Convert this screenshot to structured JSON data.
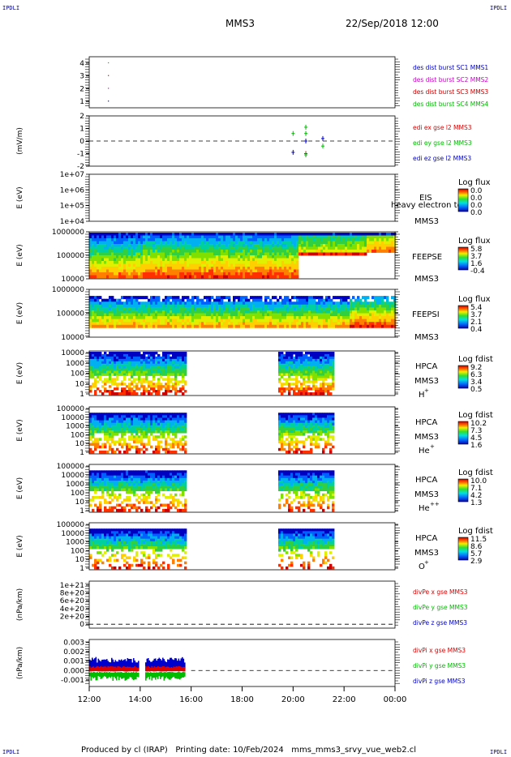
{
  "header": {
    "title": "MMS3",
    "date": "22/Sep/2018 12:00",
    "corner_tl": "IPDLI",
    "corner_tr": "IPDLI",
    "corner_bl": "IPDLI",
    "corner_br": "IPDLI"
  },
  "footer": "Produced by cl (IRAP)   Printing date: 10/Feb/2024   mms_mms3_srvy_vue_web2.cl",
  "colors": {
    "sc1": "#0000cc",
    "sc2": "#cc00cc",
    "sc3": "#cc0000",
    "sc4": "#00bb00",
    "x_comp": "#dd0000",
    "y_comp": "#00bb00",
    "z_comp": "#0000cc"
  },
  "chart_data": [
    {
      "type": "scatter",
      "panel": "burst",
      "ylabel": "",
      "ylim": [
        0.5,
        4.5
      ],
      "yticks": [
        "1",
        "2",
        "3",
        "4"
      ],
      "legend": [
        "des dist burst SC1 MMS1",
        "des dist burst SC2 MMS2",
        "des dist burst SC3 MMS3",
        "des dist burst SC4 MMS4"
      ],
      "points": [
        {
          "x": "12:45",
          "y": 1,
          "series": "SC1"
        },
        {
          "x": "12:45",
          "y": 2,
          "series": "SC2"
        },
        {
          "x": "12:45",
          "y": 3,
          "series": "SC3"
        },
        {
          "x": "12:45",
          "y": 4,
          "series": "SC4"
        }
      ]
    },
    {
      "type": "scatter",
      "panel": "edi",
      "ylabel": "(mV/m)",
      "ylim": [
        -2,
        2
      ],
      "yticks": [
        "-2",
        "-1",
        "0",
        "1",
        "2"
      ],
      "legend": [
        "edi ex gse l2 MMS3",
        "edi ey gse l2 MMS3",
        "edi ez gse l2 MMS3"
      ],
      "points": [
        {
          "x": "20:00",
          "y": 0.6,
          "series": "ey"
        },
        {
          "x": "20:00",
          "y": -0.9,
          "series": "ez"
        },
        {
          "x": "20:30",
          "y": 1.1,
          "series": "ey"
        },
        {
          "x": "20:30",
          "y": 0.6,
          "series": "ey"
        },
        {
          "x": "20:30",
          "y": 0.0,
          "series": "ez"
        },
        {
          "x": "20:30",
          "y": -1.0,
          "series": "ex"
        },
        {
          "x": "20:30",
          "y": -1.1,
          "series": "ey"
        },
        {
          "x": "21:10",
          "y": 0.2,
          "series": "ez"
        },
        {
          "x": "21:10",
          "y": -0.4,
          "series": "ey"
        }
      ]
    },
    {
      "type": "heatmap",
      "panel": "eis",
      "ylabel": "E (eV)",
      "yticks": [
        "1e+04",
        "1e+05",
        "1e+06",
        "1e+07"
      ],
      "label": "EIS",
      "label2": "MMS3",
      "overlay": "heavy electron to",
      "cbar_title": "Log flux",
      "cbar_ticks": [
        "0.0",
        "0.0",
        "0.0",
        "0.0"
      ]
    },
    {
      "type": "heatmap",
      "panel": "feepse",
      "ylabel": "E (eV)",
      "yticks": [
        "10000",
        "100000",
        "1000000"
      ],
      "label": "FEEPSE",
      "label2": "MMS3",
      "cbar_title": "Log flux",
      "cbar_ticks": [
        "5.8",
        "3.7",
        "1.6",
        "-0.4"
      ]
    },
    {
      "type": "heatmap",
      "panel": "feepsi",
      "ylabel": "E (eV)",
      "yticks": [
        "10000",
        "100000",
        "1000000"
      ],
      "label": "FEEPSI",
      "label2": "MMS3",
      "cbar_title": "Log flux",
      "cbar_ticks": [
        "5.4",
        "3.7",
        "2.1",
        "0.4"
      ]
    },
    {
      "type": "heatmap",
      "panel": "hpca-h",
      "ylabel": "E (eV)",
      "yticks": [
        "1",
        "10",
        "100",
        "1000",
        "10000"
      ],
      "label": "HPCA",
      "label2": "MMS3",
      "species": "H",
      "species_sup": "+",
      "cbar_title": "Log fdist",
      "cbar_ticks": [
        "9.2",
        "6.3",
        "3.4",
        "0.5"
      ],
      "coverage": [
        [
          "12:00",
          "15:45"
        ],
        [
          "19:25",
          "21:35"
        ]
      ]
    },
    {
      "type": "heatmap",
      "panel": "hpca-he1",
      "ylabel": "E (eV)",
      "yticks": [
        "1",
        "10",
        "100",
        "1000",
        "10000",
        "100000"
      ],
      "label": "HPCA",
      "label2": "MMS3",
      "species": "He",
      "species_sup": "+",
      "cbar_title": "Log fdist",
      "cbar_ticks": [
        "10.2",
        "7.3",
        "4.5",
        "1.6"
      ],
      "coverage": [
        [
          "12:00",
          "15:45"
        ],
        [
          "19:25",
          "21:35"
        ]
      ]
    },
    {
      "type": "heatmap",
      "panel": "hpca-he2",
      "ylabel": "E (eV)",
      "yticks": [
        "1",
        "10",
        "100",
        "1000",
        "10000",
        "100000"
      ],
      "label": "HPCA",
      "label2": "MMS3",
      "species": "He",
      "species_sup": "++",
      "cbar_title": "Log fdist",
      "cbar_ticks": [
        "10.0",
        "7.1",
        "4.2",
        "1.3"
      ],
      "coverage": [
        [
          "12:00",
          "15:45"
        ],
        [
          "19:25",
          "21:35"
        ]
      ]
    },
    {
      "type": "heatmap",
      "panel": "hpca-o",
      "ylabel": "E (eV)",
      "yticks": [
        "1",
        "10",
        "100",
        "1000",
        "10000",
        "100000"
      ],
      "label": "HPCA",
      "label2": "MMS3",
      "species": "O",
      "species_sup": "+",
      "cbar_title": "Log fdist",
      "cbar_ticks": [
        "11.5",
        "8.6",
        "5.7",
        "2.9"
      ],
      "coverage": [
        [
          "12:00",
          "15:45"
        ],
        [
          "19:25",
          "21:35"
        ]
      ]
    },
    {
      "type": "line",
      "panel": "divpe",
      "ylabel": "(nPa/km)",
      "yticks": [
        "0",
        "2e+20",
        "4e+20",
        "6e+20",
        "8e+20",
        "1e+21"
      ],
      "ylim": [
        -1e+20,
        1.1e+21
      ],
      "legend": [
        "divPe x gse MMS3",
        "divPe y gse MMS3",
        "divPe z gse MMS3"
      ],
      "series": []
    },
    {
      "type": "area",
      "panel": "divpi",
      "ylabel": "(nPa/km)",
      "yticks": [
        "-0.001",
        "0.000",
        "0.001",
        "0.002",
        "0.003"
      ],
      "ylim": [
        -0.0017,
        0.0033
      ],
      "legend": [
        "divPi x gse MMS3",
        "divPi y gse MMS3",
        "divPi z gse MMS3"
      ],
      "coverage": [
        [
          "12:00",
          "15:45"
        ]
      ],
      "series": [
        {
          "name": "divPi z gse MMS3",
          "range": [
            0.0002,
            0.0012
          ]
        },
        {
          "name": "divPi x gse MMS3",
          "range": [
            -0.0001,
            0.0004
          ]
        },
        {
          "name": "divPi y gse MMS3",
          "range": [
            -0.001,
            -0.0002
          ]
        }
      ]
    }
  ],
  "xaxis": {
    "ticks": [
      "12:00",
      "14:00",
      "16:00",
      "18:00",
      "20:00",
      "22:00",
      "00:00"
    ],
    "xlim": [
      "12:00",
      "00:00"
    ]
  }
}
